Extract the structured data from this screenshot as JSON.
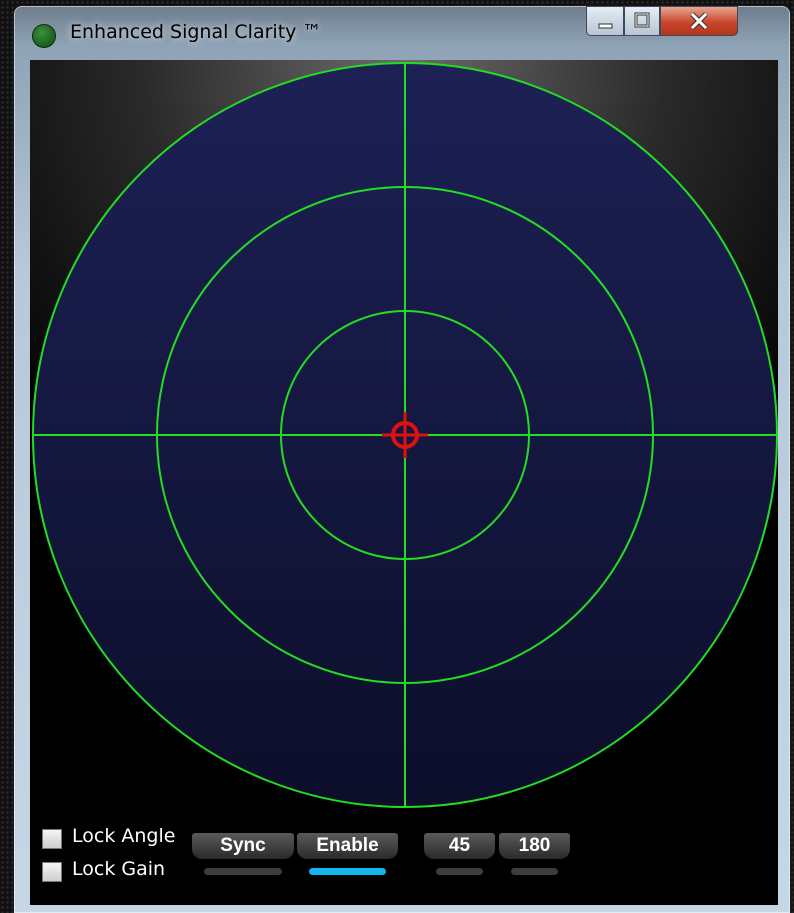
{
  "window": {
    "title": "Enhanced Signal Clarity ™"
  },
  "controls": {
    "checkboxes": [
      {
        "label": "Lock Angle",
        "checked": false
      },
      {
        "label": "Lock Gain",
        "checked": false
      }
    ],
    "buttons": [
      {
        "label": "Sync",
        "active": false
      },
      {
        "label": "Enable",
        "active": true
      },
      {
        "label": "45",
        "active": false
      },
      {
        "label": "180",
        "active": false
      }
    ]
  }
}
